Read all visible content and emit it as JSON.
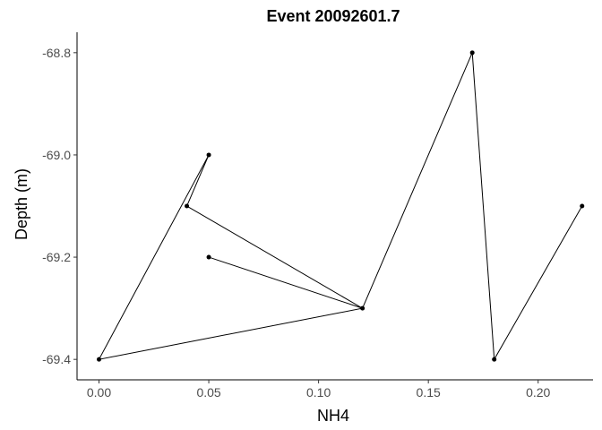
{
  "chart_data": {
    "type": "line",
    "title": "Event 20092601.7",
    "xlabel": "NH4",
    "ylabel": "Depth (m)",
    "xlim": [
      -0.01,
      0.225
    ],
    "ylim": [
      -69.44,
      -68.76
    ],
    "x_ticks": [
      0.0,
      0.05,
      0.1,
      0.15,
      0.2
    ],
    "x_tick_labels": [
      "0.00",
      "0.05",
      "0.10",
      "0.15",
      "0.20"
    ],
    "y_ticks": [
      -68.8,
      -69.0,
      -69.2,
      -69.4
    ],
    "y_tick_labels": [
      "-68.8",
      "-69.0",
      "-69.2",
      "-69.4"
    ],
    "grid": false,
    "legend": "none",
    "series": [
      {
        "points": [
          {
            "x": 0.05,
            "y": -69.0
          },
          {
            "x": 0.04,
            "y": -69.1
          },
          {
            "x": 0.12,
            "y": -69.3
          },
          {
            "x": 0.05,
            "y": -69.2
          }
        ]
      },
      {
        "points": [
          {
            "x": 0.05,
            "y": -69.0
          },
          {
            "x": 0.0,
            "y": -69.4
          },
          {
            "x": 0.12,
            "y": -69.3
          },
          {
            "x": 0.17,
            "y": -68.8
          },
          {
            "x": 0.18,
            "y": -69.4
          },
          {
            "x": 0.22,
            "y": -69.1
          }
        ]
      }
    ],
    "colors": {
      "line": "#000000",
      "point": "#000000",
      "tick_label": "#4d4d4d"
    }
  }
}
